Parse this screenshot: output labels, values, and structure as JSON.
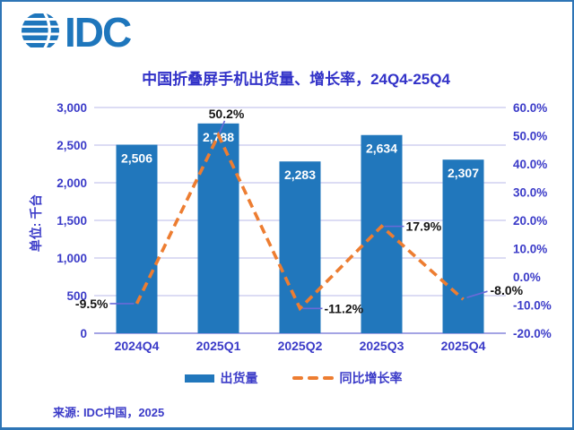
{
  "logo": {
    "text": "IDC"
  },
  "title": "中国折叠屏手机出货量、增长率，24Q4-25Q4",
  "y_axis_unit": "单位: 千台",
  "legend": {
    "shipments": "出货量",
    "growth": "同比增长率"
  },
  "source": "来源: IDC中国，2025",
  "colors": {
    "bar": "#2177BC",
    "line": "#ED7D31",
    "logo": "#1E76BC",
    "axis_text": "#3B3BC8",
    "title": "#3232C8",
    "grid": "#B9B9E8",
    "baseline": "#8585DC",
    "leader": "#6A6AD8",
    "label_black": "#141414",
    "bar_label_white": "#FFFFFF",
    "border": "#2E75B6"
  },
  "chart_data": {
    "type": "bar",
    "title": "中国折叠屏手机出货量、增长率，24Q4-25Q4",
    "categories": [
      "2024Q4",
      "2025Q1",
      "2025Q2",
      "2025Q3",
      "2025Q4"
    ],
    "series": [
      {
        "name": "出货量",
        "type": "bar",
        "axis": "left",
        "values": [
          2506,
          2788,
          2283,
          2634,
          2307
        ],
        "labels": [
          "2,506",
          "2,788",
          "2,283",
          "2,634",
          "2,307"
        ]
      },
      {
        "name": "同比增长率",
        "type": "line",
        "axis": "right",
        "values": [
          -9.5,
          50.2,
          -11.2,
          17.9,
          -8.0
        ],
        "labels": [
          "-9.5%",
          "50.2%",
          "-11.2%",
          "17.9%",
          "-8.0%"
        ],
        "label_placements": [
          "left",
          "above",
          "right",
          "right",
          "right-up"
        ]
      }
    ],
    "left_axis": {
      "label": "单位: 千台",
      "min": 0,
      "max": 3000,
      "tick_labels": [
        "0",
        "500",
        "1,000",
        "1,500",
        "2,000",
        "2,500",
        "3,000"
      ]
    },
    "right_axis": {
      "min": -20,
      "max": 60,
      "tick_labels": [
        "-20.0%",
        "-10.0%",
        "0.0%",
        "10.0%",
        "20.0%",
        "30.0%",
        "40.0%",
        "50.0%",
        "60.0%"
      ]
    },
    "grid": true,
    "line_style": "dashed",
    "legend_position": "bottom"
  }
}
